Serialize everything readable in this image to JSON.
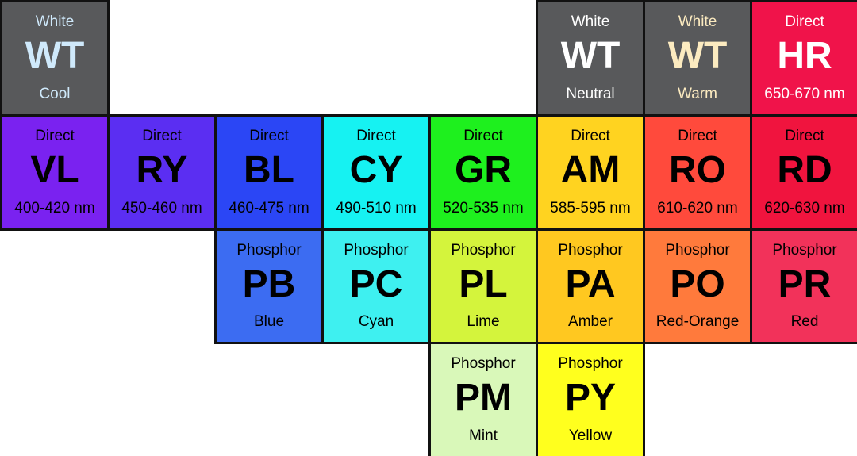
{
  "rows": [
    [
      {
        "top": "White",
        "code": "WT",
        "bottom": "Cool",
        "color": "#58595b",
        "text_color": "#cfe9fb"
      },
      null,
      null,
      null,
      null,
      {
        "top": "White",
        "code": "WT",
        "bottom": "Neutral",
        "color": "#58595b",
        "text_color": "#ffffff"
      },
      {
        "top": "White",
        "code": "WT",
        "bottom": "Warm",
        "color": "#58595b",
        "text_color": "#fcebc0"
      },
      {
        "top": "Direct",
        "code": "HR",
        "bottom": "650-670 nm",
        "color": "#f0134a",
        "text_color": "#ffffff"
      }
    ],
    [
      {
        "top": "Direct",
        "code": "VL",
        "bottom": "400-420 nm",
        "color": "#7a22f0",
        "text_color": "#000000"
      },
      {
        "top": "Direct",
        "code": "RY",
        "bottom": "450-460 nm",
        "color": "#5b2ef2",
        "text_color": "#000000"
      },
      {
        "top": "Direct",
        "code": "BL",
        "bottom": "460-475 nm",
        "color": "#2b46f5",
        "text_color": "#000000"
      },
      {
        "top": "Direct",
        "code": "CY",
        "bottom": "490-510 nm",
        "color": "#16f2f2",
        "text_color": "#000000"
      },
      {
        "top": "Direct",
        "code": "GR",
        "bottom": "520-535 nm",
        "color": "#1ef01e",
        "text_color": "#000000"
      },
      {
        "top": "Direct",
        "code": "AM",
        "bottom": "585-595 nm",
        "color": "#ffd320",
        "text_color": "#000000"
      },
      {
        "top": "Direct",
        "code": "RO",
        "bottom": "610-620 nm",
        "color": "#ff4a3c",
        "text_color": "#000000"
      },
      {
        "top": "Direct",
        "code": "RD",
        "bottom": "620-630 nm",
        "color": "#f0143e",
        "text_color": "#000000"
      }
    ],
    [
      null,
      null,
      {
        "top": "Phosphor",
        "code": "PB",
        "bottom": "Blue",
        "color": "#3c6cf2",
        "text_color": "#000000"
      },
      {
        "top": "Phosphor",
        "code": "PC",
        "bottom": "Cyan",
        "color": "#3ef0f0",
        "text_color": "#000000"
      },
      {
        "top": "Phosphor",
        "code": "PL",
        "bottom": "Lime",
        "color": "#d4f43c",
        "text_color": "#000000"
      },
      {
        "top": "Phosphor",
        "code": "PA",
        "bottom": "Amber",
        "color": "#ffc820",
        "text_color": "#000000"
      },
      {
        "top": "Phosphor",
        "code": "PO",
        "bottom": "Red-Orange",
        "color": "#ff7a3c",
        "text_color": "#000000"
      },
      {
        "top": "Phosphor",
        "code": "PR",
        "bottom": "Red",
        "color": "#f2325a",
        "text_color": "#000000"
      }
    ],
    [
      null,
      null,
      null,
      null,
      {
        "top": "Phosphor",
        "code": "PM",
        "bottom": "Mint",
        "color": "#d9f8b9",
        "text_color": "#000000"
      },
      {
        "top": "Phosphor",
        "code": "PY",
        "bottom": "Yellow",
        "color": "#ffff1e",
        "text_color": "#000000"
      },
      null,
      null
    ]
  ]
}
